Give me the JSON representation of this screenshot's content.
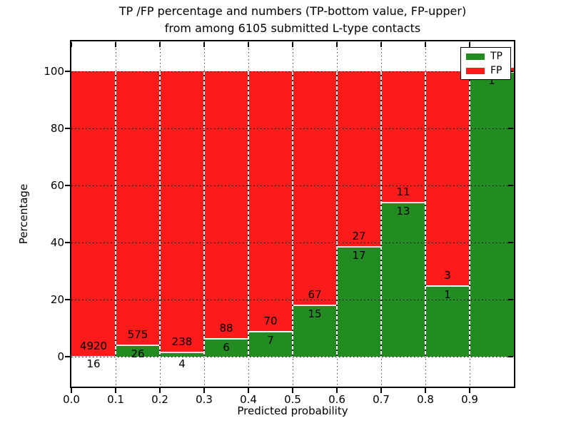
{
  "title": {
    "line1": "TP /FP percentage and numbers (TP-bottom value, FP-upper)",
    "line2": "from among 6105 submitted L-type contacts"
  },
  "x_axis": {
    "label": "Predicted probability",
    "ticks": [
      "0.0",
      "0.1",
      "0.2",
      "0.3",
      "0.4",
      "0.5",
      "0.6",
      "0.7",
      "0.8",
      "0.9"
    ]
  },
  "y_axis": {
    "label": "Percentage",
    "ticks": [
      "0",
      "20",
      "40",
      "60",
      "80",
      "100"
    ]
  },
  "legend": {
    "items": [
      {
        "label": "TP",
        "color": "#228b22"
      },
      {
        "label": "FP",
        "color": "#fb1b1b"
      }
    ]
  },
  "colors": {
    "tp": "#228b22",
    "fp": "#fb1b1b",
    "grid": "#000000"
  },
  "chart_data": {
    "type": "bar",
    "subtype": "stacked-percentage",
    "title": "TP /FP percentage and numbers (TP-bottom value, FP-upper) from among 6105 submitted L-type contacts",
    "xlabel": "Predicted probability",
    "ylabel": "Percentage",
    "categories": [
      "0.0-0.1",
      "0.1-0.2",
      "0.2-0.3",
      "0.3-0.4",
      "0.4-0.5",
      "0.5-0.6",
      "0.6-0.7",
      "0.7-0.8",
      "0.8-0.9",
      "0.9-1.0"
    ],
    "series": [
      {
        "name": "TP",
        "color": "#228b22",
        "values": [
          16,
          26,
          4,
          6,
          7,
          15,
          17,
          13,
          1,
          1
        ]
      },
      {
        "name": "FP",
        "color": "#fb1b1b",
        "values": [
          4920,
          575,
          238,
          88,
          70,
          67,
          27,
          11,
          3,
          0
        ]
      }
    ],
    "bar_labels": {
      "tp": [
        "16",
        "26",
        "4",
        "6",
        "7",
        "15",
        "17",
        "13",
        "1",
        "1"
      ],
      "fp": [
        "4920",
        "575",
        "238",
        "88",
        "70",
        "67",
        "27",
        "11",
        "3",
        ""
      ]
    },
    "total_contacts": 6105,
    "xlim": [
      0.0,
      1.0
    ],
    "ylim": [
      -10,
      110
    ],
    "grid": true,
    "grid_style": "dotted",
    "legend_position": "upper right",
    "last_bar_red_cap_artifact": true
  }
}
